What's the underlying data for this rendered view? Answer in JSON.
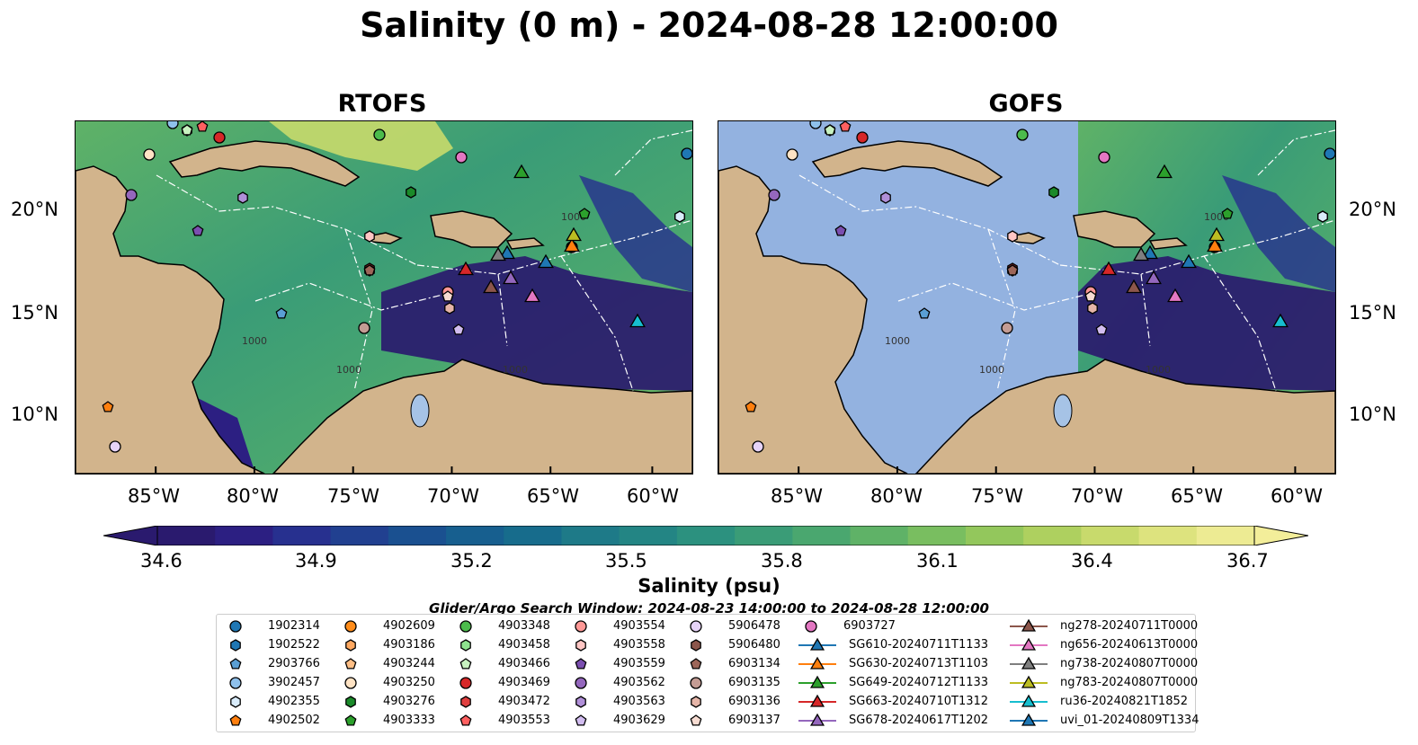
{
  "title": "Salinity (0 m) - 2024-08-28 12:00:00",
  "panels": [
    {
      "title": "RTOFS",
      "grey_model": false
    },
    {
      "title": "GOFS",
      "grey_model": true
    }
  ],
  "lon_ticks": [
    "85°W",
    "80°W",
    "75°W",
    "70°W",
    "65°W",
    "60°W"
  ],
  "lat_ticks": [
    "20°N",
    "15°N",
    "10°N"
  ],
  "contour_labels": [
    "1000",
    "1000",
    "1000",
    "1000"
  ],
  "colorbar": {
    "label": "Salinity (psu)",
    "ticks": [
      "34.6",
      "34.9",
      "35.2",
      "35.5",
      "35.8",
      "36.1",
      "36.4",
      "36.7"
    ],
    "colors": [
      "#2a1a6e",
      "#2c1f82",
      "#27308f",
      "#214090",
      "#1a5090",
      "#175f8f",
      "#176c8c",
      "#1e7a88",
      "#238584",
      "#2c917f",
      "#3a9c77",
      "#4aa76f",
      "#5fb267",
      "#79be60",
      "#93c75c",
      "#aed05f",
      "#c8da6c",
      "#ddE37e",
      "#edeb93"
    ],
    "extend_low": "#2a1a6e",
    "extend_high": "#f3ee9a"
  },
  "search_window": "Glider/Argo Search Window: 2024-08-23 14:00:00 to 2024-08-28 12:00:00",
  "legend": {
    "argo": [
      {
        "label": "1902314",
        "color": "#1f77b4",
        "shape": "circle"
      },
      {
        "label": "1902522",
        "color": "#1f77b4",
        "shape": "hexagon"
      },
      {
        "label": "2903766",
        "color": "#5a9fd4",
        "shape": "pentagon"
      },
      {
        "label": "3902457",
        "color": "#8fc1ec",
        "shape": "circle"
      },
      {
        "label": "4902355",
        "color": "#d9ecfb",
        "shape": "hexagon"
      },
      {
        "label": "4902502",
        "color": "#ff7f0e",
        "shape": "pentagon"
      },
      {
        "label": "4902609",
        "color": "#ff8c1a",
        "shape": "circle"
      },
      {
        "label": "4903186",
        "color": "#ffa860",
        "shape": "hexagon"
      },
      {
        "label": "4903244",
        "color": "#ffbf86",
        "shape": "pentagon"
      },
      {
        "label": "4903250",
        "color": "#ffe3c4",
        "shape": "circle"
      },
      {
        "label": "4903276",
        "color": "#1b8a2a",
        "shape": "hexagon"
      },
      {
        "label": "4903333",
        "color": "#2ca02c",
        "shape": "pentagon"
      },
      {
        "label": "4903348",
        "color": "#4cbb4c",
        "shape": "circle"
      },
      {
        "label": "4903458",
        "color": "#8ee28e",
        "shape": "hexagon"
      },
      {
        "label": "4903466",
        "color": "#c8f2c0",
        "shape": "pentagon"
      },
      {
        "label": "4903469",
        "color": "#d62728",
        "shape": "circle"
      },
      {
        "label": "4903472",
        "color": "#e04040",
        "shape": "hexagon"
      },
      {
        "label": "4903553",
        "color": "#ff6060",
        "shape": "pentagon"
      },
      {
        "label": "4903554",
        "color": "#ff9896",
        "shape": "circle"
      },
      {
        "label": "4903558",
        "color": "#ffc6c4",
        "shape": "hexagon"
      },
      {
        "label": "4903559",
        "color": "#7b4fb0",
        "shape": "pentagon"
      },
      {
        "label": "4903562",
        "color": "#9467bd",
        "shape": "circle"
      },
      {
        "label": "4903563",
        "color": "#b08fd8",
        "shape": "hexagon"
      },
      {
        "label": "4903629",
        "color": "#d2bdf0",
        "shape": "pentagon"
      },
      {
        "label": "5906478",
        "color": "#e6d3f8",
        "shape": "circle"
      },
      {
        "label": "5906480",
        "color": "#8c564b",
        "shape": "hexagon"
      },
      {
        "label": "6903134",
        "color": "#9d6659",
        "shape": "pentagon"
      },
      {
        "label": "6903135",
        "color": "#c49c94",
        "shape": "circle"
      },
      {
        "label": "6903136",
        "color": "#e5b5a8",
        "shape": "hexagon"
      },
      {
        "label": "6903137",
        "color": "#f7dcd2",
        "shape": "pentagon"
      },
      {
        "label": "6903727",
        "color": "#e377c2",
        "shape": "circle"
      }
    ],
    "gliders": [
      {
        "label": "SG610-20240711T1133",
        "color": "#1f77b4"
      },
      {
        "label": "SG630-20240713T1103",
        "color": "#ff7f0e"
      },
      {
        "label": "SG649-20240712T1133",
        "color": "#2ca02c"
      },
      {
        "label": "SG663-20240710T1312",
        "color": "#d62728"
      },
      {
        "label": "SG678-20240617T1202",
        "color": "#9467bd"
      },
      {
        "label": "ng278-20240711T0000",
        "color": "#8c564b"
      },
      {
        "label": "ng656-20240613T0000",
        "color": "#e377c2"
      },
      {
        "label": "ng738-20240807T0000",
        "color": "#7f7f7f"
      },
      {
        "label": "ng783-20240807T0000",
        "color": "#bcbd22"
      },
      {
        "label": "ru36-20240821T1852",
        "color": "#17becf"
      },
      {
        "label": "uvi_01-20240809T1334",
        "color": "#1f77b4"
      }
    ]
  },
  "colors": {
    "land": "#d2b48c",
    "nodata_ocean": "#93b2e0",
    "lake": "#a6c3e6",
    "pacific_grey": "#6f6f7a"
  }
}
